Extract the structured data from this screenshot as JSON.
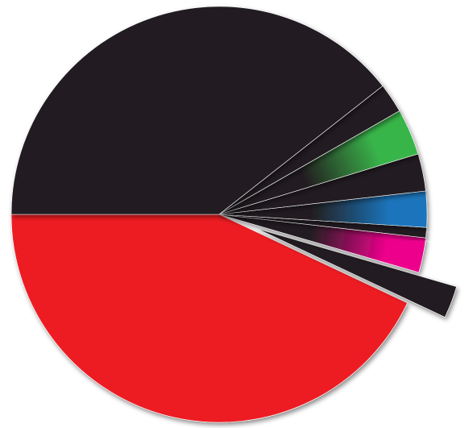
{
  "chart_data": {
    "type": "pie",
    "title": "",
    "legend": "none",
    "unit": "percent",
    "slices": [
      {
        "name": "",
        "value": 43.0,
        "color": "#ed1c24",
        "exploded": false
      },
      {
        "name": "",
        "value": 2.5,
        "color": "#231f20",
        "exploded": true
      },
      {
        "name": "",
        "value": 2.7,
        "color": "#ec008c",
        "exploded": false
      },
      {
        "name": "",
        "value": 0.8,
        "color": "#231f20",
        "exploded": false
      },
      {
        "name": "",
        "value": 2.8,
        "color": "#1b75bc",
        "exploded": false
      },
      {
        "name": "",
        "value": 2.9,
        "color": "#231f20",
        "exploded": false
      },
      {
        "name": "",
        "value": 3.6,
        "color": "#39b54a",
        "exploded": false
      },
      {
        "name": "",
        "value": 2.3,
        "color": "#231f20",
        "exploded": false
      },
      {
        "name": "",
        "value": 39.4,
        "color": "#231f20",
        "exploded": false
      }
    ]
  }
}
